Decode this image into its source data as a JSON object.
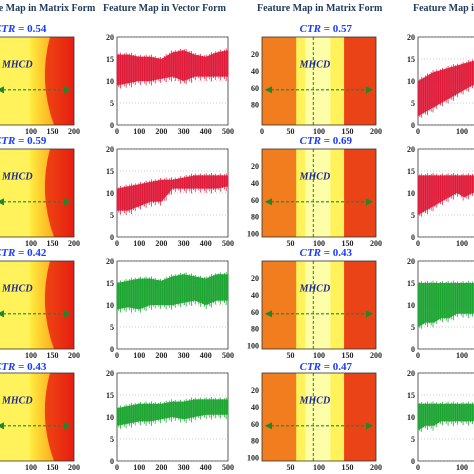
{
  "headers": {
    "matrix": "Feature Map in Matrix Form",
    "vector": "Feature Map in Vector Form"
  },
  "labels": {
    "ctr_prefix": "CTR",
    "ctr_eq": " = ",
    "mhcd": "MHCD"
  },
  "colors": {
    "red_series": "#dd1030",
    "green_series": "#12a028",
    "arrow": "#1a8a2a",
    "ctr_text": "#1a3cff",
    "mhcd_text": "#1a2a8a"
  },
  "axes": {
    "vector_x_ticks": [
      "0",
      "100",
      "200",
      "300",
      "400",
      "500"
    ],
    "vector_y_ticks": [
      "0",
      "5",
      "10",
      "15",
      "20"
    ],
    "matrix_x_ticks": [
      "0",
      "50",
      "100",
      "150",
      "200"
    ],
    "matrix_y_ticks": [
      "20",
      "40",
      "60",
      "80",
      "100"
    ]
  },
  "chart_data": [
    {
      "type": "heatmap",
      "row": 1,
      "position": "left-matrix",
      "ctr": "0.54",
      "annotation": "MHCD",
      "x_ticks_visible": [
        "100",
        "150",
        "200"
      ]
    },
    {
      "type": "area",
      "row": 1,
      "position": "left-vector",
      "color": "red",
      "xlim": [
        0,
        500
      ],
      "ylim": [
        0,
        20
      ],
      "x": [
        0,
        50,
        100,
        150,
        200,
        250,
        300,
        350,
        400,
        450,
        500
      ],
      "upper": [
        16,
        16,
        15.5,
        15.5,
        15,
        16.5,
        17,
        16,
        15.5,
        16.5,
        17
      ],
      "lower": [
        9,
        9.5,
        10,
        10,
        10.5,
        11,
        10,
        11,
        11,
        11,
        11
      ]
    },
    {
      "type": "heatmap",
      "row": 1,
      "position": "right-matrix",
      "ctr": "0.57",
      "annotation": "MHCD",
      "x_ticks_visible": [
        "0",
        "50",
        "100",
        "150",
        "200"
      ],
      "y_ticks_visible": [
        "20",
        "40",
        "60",
        "80"
      ]
    },
    {
      "type": "area",
      "row": 1,
      "position": "right-vector",
      "color": "red",
      "partial": true,
      "upper": [
        10,
        11,
        12,
        12.5,
        13,
        13.5,
        14,
        14.5,
        15
      ],
      "lower": [
        2,
        3,
        4,
        5,
        6,
        7,
        8,
        9,
        9
      ]
    },
    {
      "type": "heatmap",
      "row": 2,
      "position": "left-matrix",
      "ctr": "0.59",
      "annotation": "MHCD",
      "x_ticks_visible": [
        "100",
        "150",
        "200"
      ]
    },
    {
      "type": "area",
      "row": 2,
      "position": "left-vector",
      "color": "red",
      "xlim": [
        0,
        500
      ],
      "ylim": [
        0,
        20
      ],
      "x": [
        0,
        50,
        100,
        150,
        200,
        250,
        300,
        350,
        400,
        450,
        500
      ],
      "upper": [
        11,
        11.5,
        12,
        12.5,
        13,
        13,
        13.5,
        14,
        14,
        14,
        14
      ],
      "lower": [
        6,
        6,
        7,
        8,
        8,
        11,
        11,
        11,
        11,
        11,
        11.5
      ]
    },
    {
      "type": "heatmap",
      "row": 2,
      "position": "right-matrix",
      "ctr": "0.69",
      "annotation": "MHCD",
      "x_ticks_visible": [
        "50",
        "100",
        "150",
        "200"
      ],
      "y_ticks_visible": [
        "20",
        "40",
        "60",
        "80",
        "100"
      ]
    },
    {
      "type": "area",
      "row": 2,
      "position": "right-vector",
      "color": "red",
      "partial": true,
      "upper": [
        14,
        14,
        14,
        14,
        14,
        14,
        14,
        14,
        14
      ],
      "lower": [
        5,
        6,
        7,
        8,
        9,
        10,
        9,
        10,
        10
      ]
    },
    {
      "type": "heatmap",
      "row": 3,
      "position": "left-matrix",
      "ctr": "0.42",
      "annotation": "MHCD",
      "x_ticks_visible": [
        "100",
        "150",
        "200"
      ]
    },
    {
      "type": "area",
      "row": 3,
      "position": "left-vector",
      "color": "green",
      "xlim": [
        0,
        500
      ],
      "ylim": [
        0,
        20
      ],
      "x": [
        0,
        50,
        100,
        150,
        200,
        250,
        300,
        350,
        400,
        450,
        500
      ],
      "upper": [
        15,
        15.5,
        16,
        16,
        15.5,
        16.5,
        17,
        16.5,
        16,
        17,
        17
      ],
      "lower": [
        9,
        9.5,
        9,
        10,
        10,
        10,
        10.5,
        11,
        10,
        11,
        11
      ]
    },
    {
      "type": "heatmap",
      "row": 3,
      "position": "right-matrix",
      "ctr": "0.43",
      "annotation": "MHCD",
      "x_ticks_visible": [
        "50",
        "100",
        "150",
        "200"
      ],
      "y_ticks_visible": [
        "20",
        "40",
        "60",
        "80",
        "100"
      ]
    },
    {
      "type": "area",
      "row": 3,
      "position": "right-vector",
      "color": "green",
      "partial": true,
      "upper": [
        15,
        15,
        15,
        15,
        15,
        15,
        15,
        15,
        15
      ],
      "lower": [
        5,
        6,
        6,
        7,
        7,
        8,
        8,
        8,
        8
      ]
    },
    {
      "type": "heatmap",
      "row": 4,
      "position": "left-matrix",
      "ctr": "0.43",
      "annotation": "MHCD",
      "x_ticks_visible": [
        "100",
        "150",
        "200"
      ]
    },
    {
      "type": "area",
      "row": 4,
      "position": "left-vector",
      "color": "green",
      "xlim": [
        0,
        500
      ],
      "ylim": [
        0,
        20
      ],
      "x": [
        0,
        50,
        100,
        150,
        200,
        250,
        300,
        350,
        400,
        450,
        500
      ],
      "upper": [
        12,
        12.5,
        13,
        13,
        13,
        13.5,
        13.5,
        14,
        14,
        14,
        14
      ],
      "lower": [
        8,
        8.5,
        9,
        9,
        9.5,
        10,
        9.5,
        10,
        10.5,
        10.5,
        10.5
      ]
    },
    {
      "type": "heatmap",
      "row": 4,
      "position": "right-matrix",
      "ctr": "0.47",
      "annotation": "MHCD",
      "x_ticks_visible": [
        "50",
        "100",
        "150",
        "200"
      ],
      "y_ticks_visible": [
        "20",
        "40",
        "60",
        "80",
        "100"
      ]
    },
    {
      "type": "area",
      "row": 4,
      "position": "right-vector",
      "color": "green",
      "partial": true,
      "upper": [
        13,
        13,
        13,
        13,
        13,
        13,
        13,
        13,
        13
      ],
      "lower": [
        7,
        8,
        8,
        9,
        9,
        9,
        9,
        9,
        9
      ]
    }
  ]
}
